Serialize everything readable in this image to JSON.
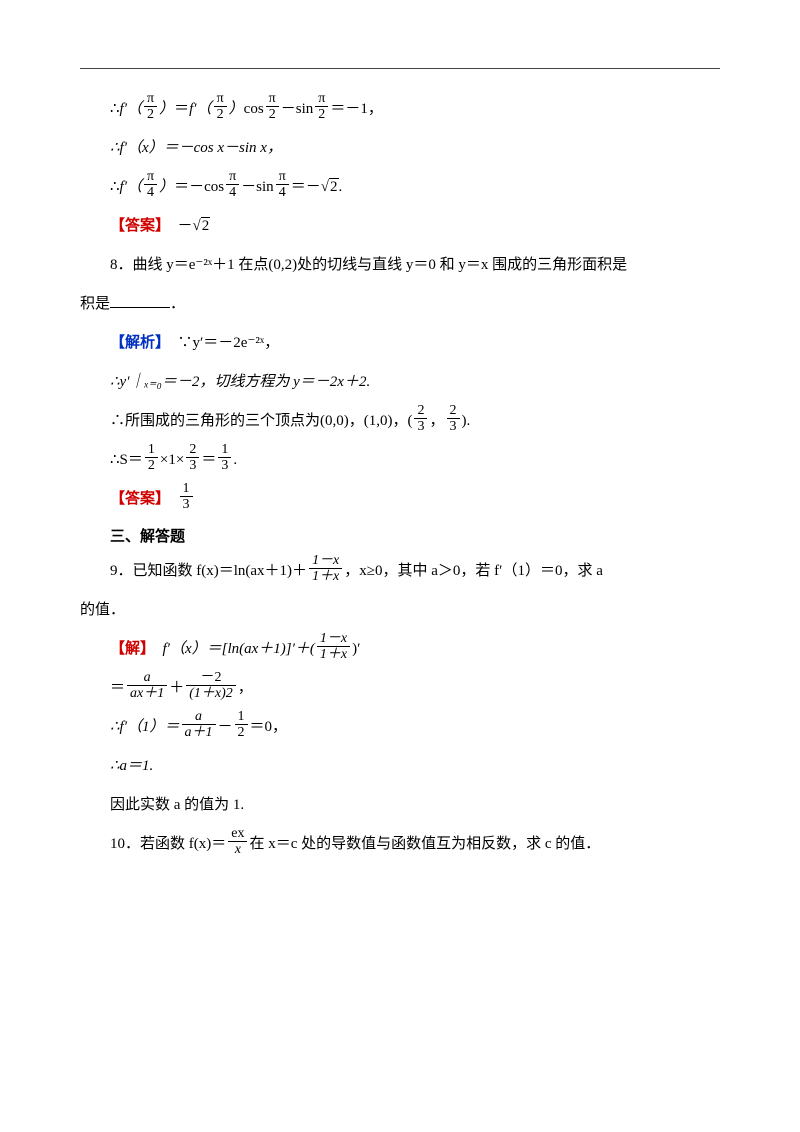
{
  "colors": {
    "text": "#000000",
    "answer_label": "#d00000",
    "solution_label": "#0030c0",
    "rule": "#444444",
    "background": "#ffffff"
  },
  "typography": {
    "body_fontsize_pt": 11,
    "body_fontfamily": "SimSun",
    "line_height": 2.6,
    "text_indent_em": 2
  },
  "labels": {
    "answer": "【答案】",
    "solution": "【解析】",
    "solve": "【解】"
  },
  "lines": {
    "l1_a": "∴",
    "l1_b": "＝",
    "l1_c": "cos",
    "l1_d": "－sin",
    "l1_e": "＝－1，",
    "fpi2_fn": "f′（",
    "fpi2_close": "）",
    "pi": "π",
    "two": "2",
    "l2": "∴f′（x）＝－cos x－sin x，",
    "l3_a": "∴",
    "l3_b": "＝－cos",
    "l3_c": "－sin",
    "l3_d": "＝－",
    "l3_e": ".",
    "four": "4",
    "sqrt2": "2",
    "ans1": "　－",
    "q8": "8．曲线 y＝e⁻²ˣ＋1 在点(0,2)处的切线与直线 y＝0 和 y＝x 围成的三角形面积是",
    "q8_end": "．",
    "sol8_a": "　∵y′＝－2e⁻²ˣ，",
    "sol8_b": "∴y′｜ₓ₌₀＝－2，切线方程为 y＝－2x＋2.",
    "sol8_c_a": "∴所围成的三角形的三个顶点为(0,0)，(1,0)，(",
    "sol8_c_b": "，",
    "sol8_c_c": ").",
    "twothirds_num": "2",
    "twothirds_den": "3",
    "sol8_d_a": "∴S＝",
    "sol8_d_b": "×1×",
    "sol8_d_c": "＝",
    "sol8_d_d": ".",
    "half_num": "1",
    "half_den": "2",
    "third_num": "1",
    "third_den": "3",
    "ans2_space": "　",
    "sec3": "三、解答题",
    "q9_a": "9．已知函数 f(x)＝ln(ax＋1)＋",
    "q9_b": "，x≥0，其中 a＞0，若 f′（1）＝0，求 a",
    "q9_c": "的值．",
    "frac_1mx_num": "1－x",
    "frac_1mx_den": "1＋x",
    "sol9_a": "　f′（x）＝[ln(ax＋1)]′＋(",
    "sol9_b": ")′",
    "sol9_c_a": "＝",
    "sol9_c_b": "＋",
    "sol9_c_c": "，",
    "frac_a_num": "a",
    "frac_a_den": "ax＋1",
    "frac_m2_num": "－2",
    "frac_m2_den": "(1＋x)2",
    "sol9_d_a": "∴f′（1）＝",
    "sol9_d_b": "－",
    "sol9_d_c": "＝0，",
    "frac_aap1_num": "a",
    "frac_aap1_den": "a＋1",
    "sol9_e": "∴a＝1.",
    "sol9_f": "因此实数 a 的值为 1.",
    "q10_a": "10．若函数 f(x)＝",
    "q10_b": "在 x＝c 处的导数值与函数值互为相反数，求 c 的值．",
    "frac_ex_num": "ex",
    "frac_ex_den": "x"
  }
}
